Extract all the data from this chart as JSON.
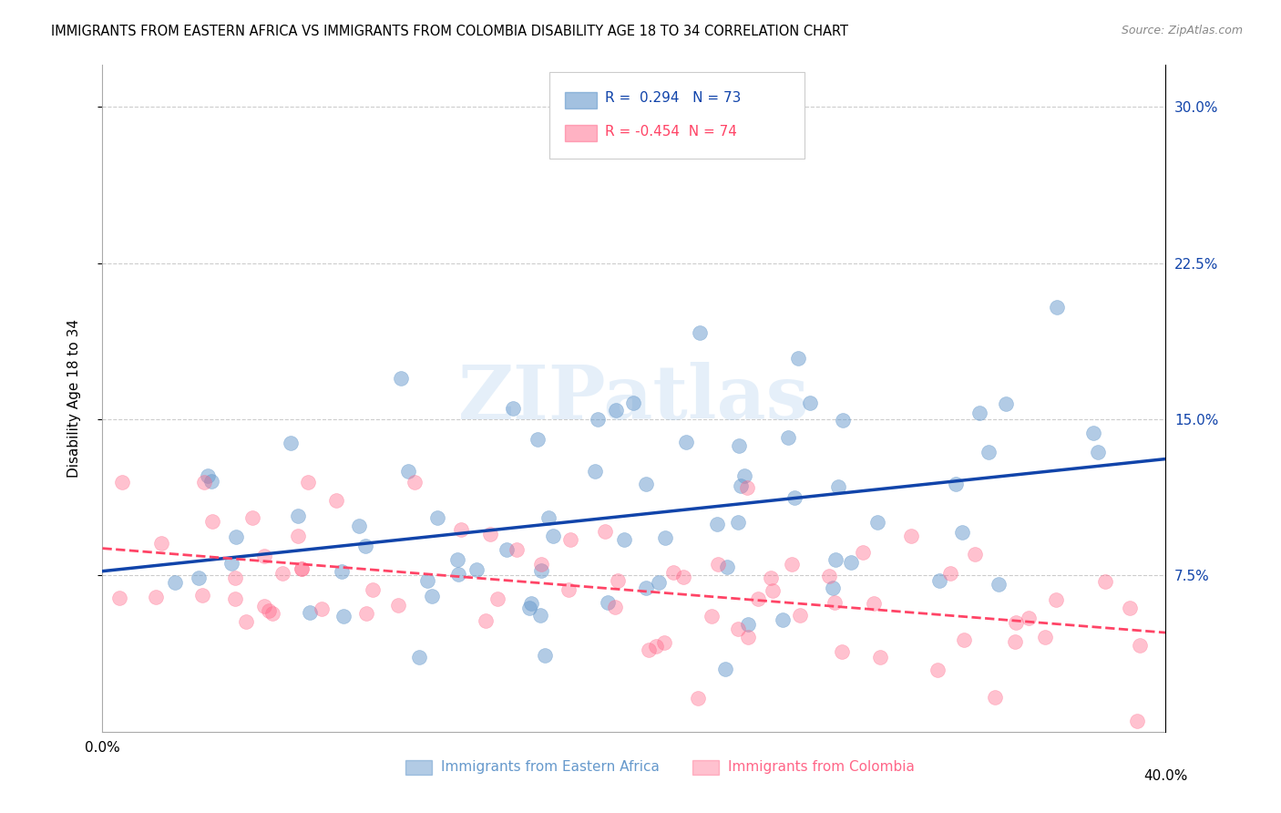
{
  "title": "IMMIGRANTS FROM EASTERN AFRICA VS IMMIGRANTS FROM COLOMBIA DISABILITY AGE 18 TO 34 CORRELATION CHART",
  "source": "Source: ZipAtlas.com",
  "ylabel": "Disability Age 18 to 34",
  "xlim": [
    0.0,
    0.4
  ],
  "ylim": [
    0.0,
    0.32
  ],
  "ytick_positions": [
    0.075,
    0.15,
    0.225,
    0.3
  ],
  "ytick_labels": [
    "7.5%",
    "15.0%",
    "22.5%",
    "30.0%"
  ],
  "xtick_positions": [
    0.0,
    0.1,
    0.2,
    0.3,
    0.4
  ],
  "grid_color": "#cccccc",
  "blue_color": "#6699cc",
  "pink_color": "#ff6688",
  "blue_line_color": "#1144aa",
  "pink_line_color": "#ff4466",
  "r_blue": 0.294,
  "n_blue": 73,
  "r_pink": -0.454,
  "n_pink": 74,
  "watermark": "ZIPatlas",
  "legend_label_blue": "Immigrants from Eastern Africa",
  "legend_label_pink": "Immigrants from Colombia"
}
